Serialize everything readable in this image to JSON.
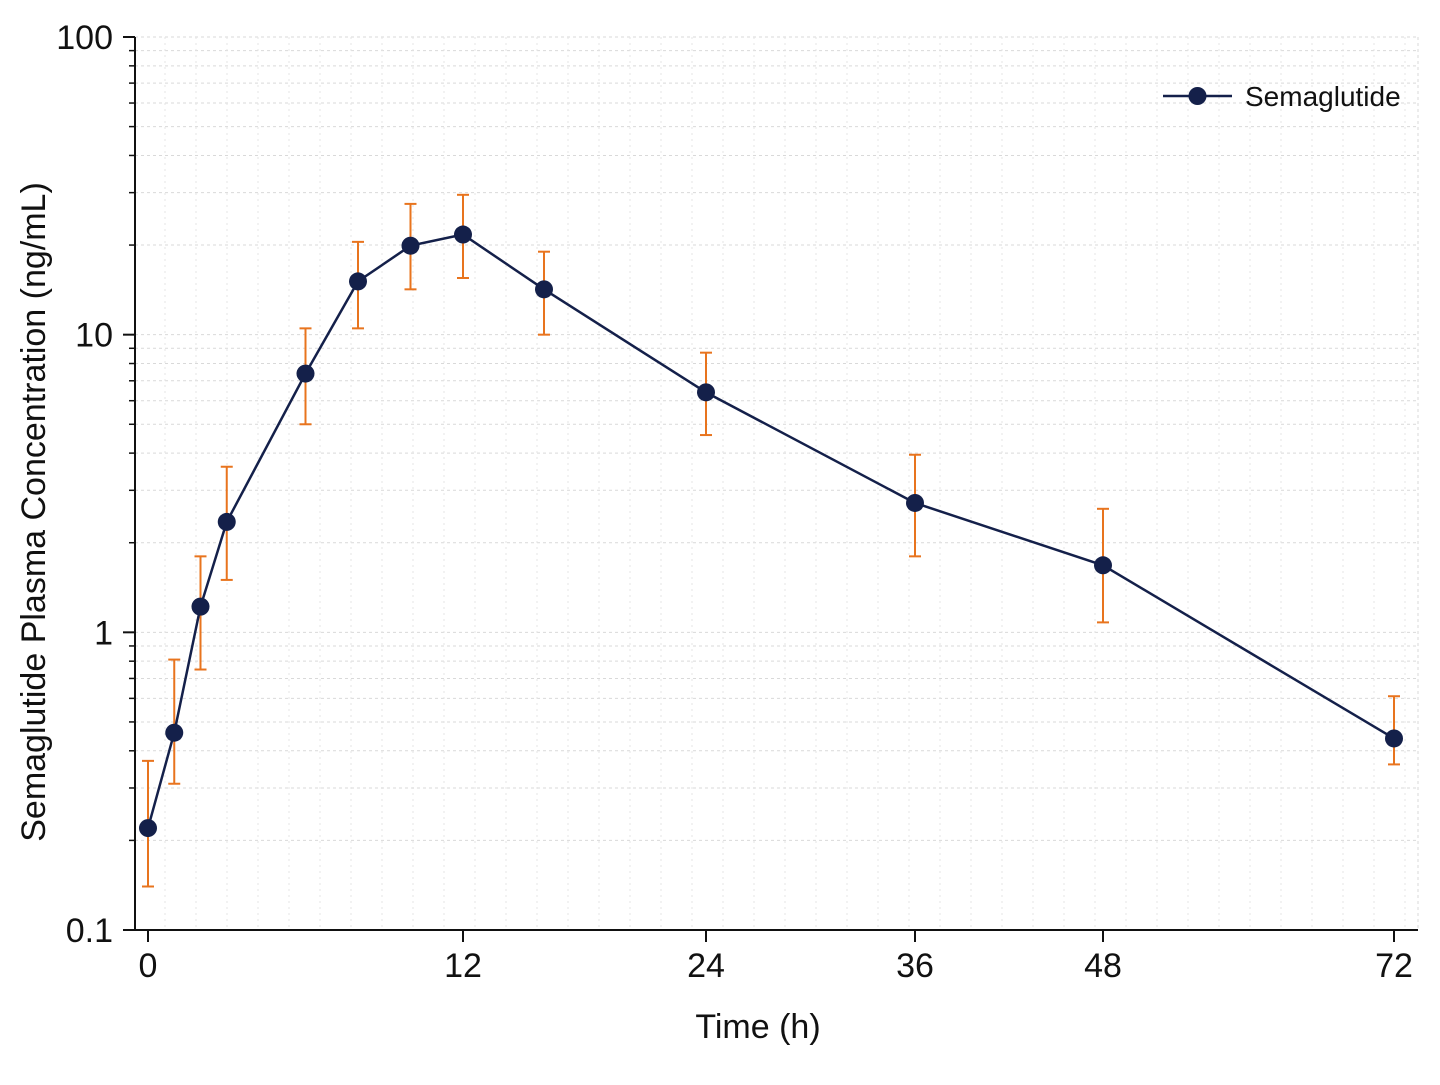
{
  "chart_data": {
    "type": "line",
    "xlabel": "Time (h)",
    "ylabel": "Semaglutide Plasma Concentration (ng/mL)",
    "x_scale": "nonlinear-categorical",
    "y_scale": "log",
    "ylim": [
      0.1,
      100
    ],
    "y_ticks": [
      {
        "value": 0.1,
        "label": "0.1"
      },
      {
        "value": 1,
        "label": "1"
      },
      {
        "value": 10,
        "label": "10"
      },
      {
        "value": 100,
        "label": "100"
      }
    ],
    "x_ticks": [
      {
        "value": 0,
        "label": "0"
      },
      {
        "value": 12,
        "label": "12"
      },
      {
        "value": 24,
        "label": "24"
      },
      {
        "value": 36,
        "label": "36"
      },
      {
        "value": 48,
        "label": "48"
      },
      {
        "value": 72,
        "label": "72"
      }
    ],
    "grid": true,
    "legend_position": "top-right",
    "series": [
      {
        "name": "Semaglutide",
        "color": "#14204a",
        "error_color": "#e8741e",
        "x": [
          0,
          1,
          2,
          3,
          6,
          8,
          10,
          12,
          16,
          24,
          36,
          48,
          72
        ],
        "y": [
          0.22,
          0.46,
          1.22,
          2.35,
          7.4,
          15.1,
          19.9,
          21.7,
          14.2,
          6.4,
          2.72,
          1.68,
          0.44
        ],
        "y_lower": [
          0.14,
          0.31,
          0.75,
          1.5,
          5.0,
          10.5,
          14.2,
          15.5,
          10.0,
          4.6,
          1.8,
          1.08,
          0.36
        ],
        "y_upper": [
          0.37,
          0.81,
          1.8,
          3.6,
          10.5,
          20.5,
          27.5,
          29.5,
          19.0,
          8.7,
          3.95,
          2.6,
          0.61
        ]
      }
    ]
  }
}
